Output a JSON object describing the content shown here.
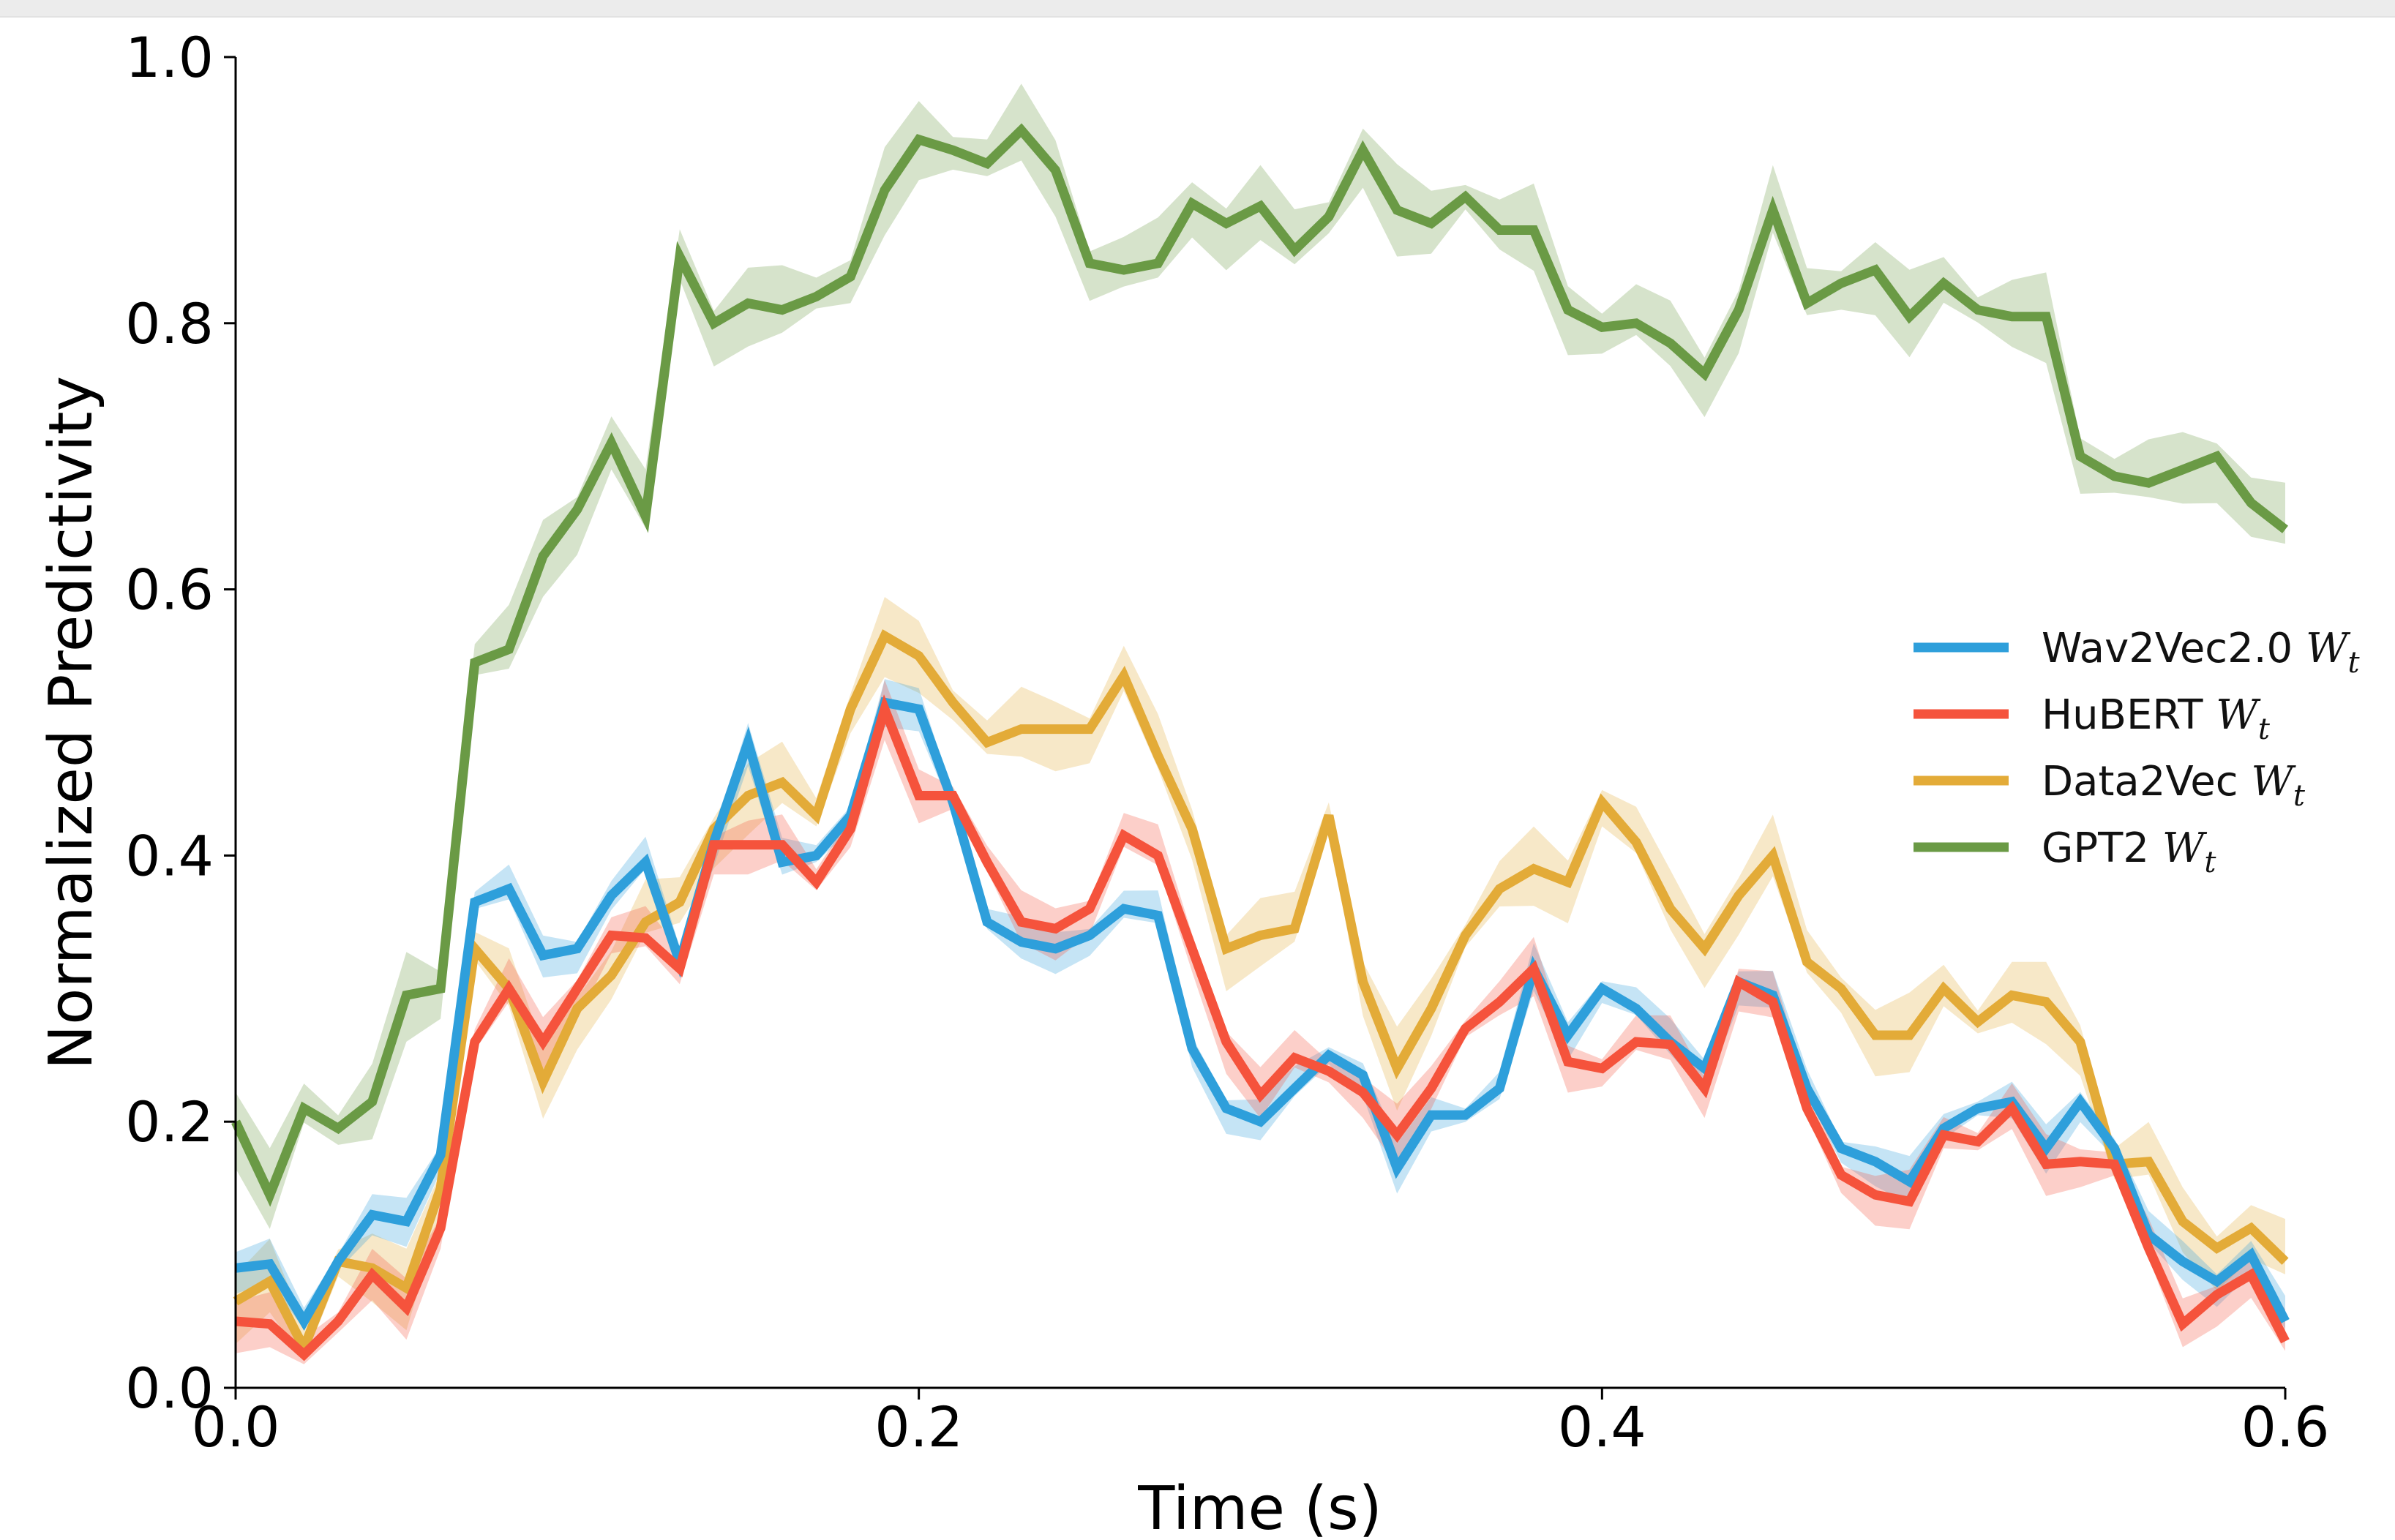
{
  "chart_data": {
    "type": "line",
    "xlabel": "Time (s)",
    "ylabel": "Normalized Predictivity",
    "xlim": [
      0.0,
      0.6
    ],
    "ylim": [
      0.0,
      1.0
    ],
    "xticks": [
      0.0,
      0.2,
      0.4,
      0.6
    ],
    "xtick_labels": [
      "0.0",
      "0.2",
      "0.4",
      "0.6"
    ],
    "yticks": [
      0.0,
      0.2,
      0.4,
      0.6,
      0.8,
      1.0
    ],
    "ytick_labels": [
      "0.0",
      "0.2",
      "0.4",
      "0.6",
      "0.8",
      "1.0"
    ],
    "grid": false,
    "legend_position": "center-right",
    "x": [
      0.0,
      0.01,
      0.02,
      0.03,
      0.04,
      0.05,
      0.06,
      0.07,
      0.08,
      0.09,
      0.1,
      0.11,
      0.12,
      0.13,
      0.14,
      0.15,
      0.16,
      0.17,
      0.18,
      0.19,
      0.2,
      0.21,
      0.22,
      0.23,
      0.24,
      0.25,
      0.26,
      0.27,
      0.28,
      0.29,
      0.3,
      0.31,
      0.32,
      0.33,
      0.34,
      0.35,
      0.36,
      0.37,
      0.38,
      0.39,
      0.4,
      0.41,
      0.42,
      0.43,
      0.44,
      0.45,
      0.46,
      0.47,
      0.48,
      0.49,
      0.5,
      0.51,
      0.52,
      0.53,
      0.54,
      0.55,
      0.56,
      0.57,
      0.58,
      0.59,
      0.6
    ],
    "series": [
      {
        "name": "Wav2Vec2.0",
        "subscript_label": "W",
        "subscript": "t",
        "color": "#2e9fdb",
        "values": [
          0.09,
          0.093,
          0.05,
          0.095,
          0.13,
          0.125,
          0.175,
          0.365,
          0.375,
          0.325,
          0.33,
          0.37,
          0.395,
          0.32,
          0.41,
          0.485,
          0.395,
          0.4,
          0.43,
          0.515,
          0.51,
          0.44,
          0.35,
          0.335,
          0.33,
          0.34,
          0.36,
          0.355,
          0.255,
          0.21,
          0.2,
          0.225,
          0.25,
          0.235,
          0.165,
          0.205,
          0.205,
          0.225,
          0.315,
          0.265,
          0.3,
          0.285,
          0.26,
          0.24,
          0.305,
          0.295,
          0.225,
          0.18,
          0.17,
          0.155,
          0.195,
          0.21,
          0.215,
          0.18,
          0.215,
          0.18,
          0.115,
          0.095,
          0.08,
          0.1,
          0.05
        ],
        "band": 0.012
      },
      {
        "name": "HuBERT",
        "subscript_label": "W",
        "subscript": "t",
        "color": "#f5533c",
        "values": [
          0.05,
          0.048,
          0.025,
          0.05,
          0.085,
          0.06,
          0.12,
          0.26,
          0.3,
          0.26,
          0.3,
          0.34,
          0.338,
          0.315,
          0.408,
          0.408,
          0.408,
          0.38,
          0.42,
          0.51,
          0.445,
          0.445,
          0.395,
          0.35,
          0.345,
          0.36,
          0.415,
          0.4,
          0.33,
          0.26,
          0.22,
          0.248,
          0.238,
          0.222,
          0.19,
          0.225,
          0.27,
          0.29,
          0.315,
          0.245,
          0.24,
          0.26,
          0.258,
          0.225,
          0.305,
          0.29,
          0.21,
          0.16,
          0.145,
          0.14,
          0.19,
          0.185,
          0.21,
          0.168,
          0.17,
          0.168,
          0.105,
          0.048,
          0.07,
          0.085,
          0.035
        ],
        "band": 0.015
      },
      {
        "name": "Data2Vec",
        "subscript_label": "W",
        "subscript": "t",
        "color": "#e3ab38",
        "values": [
          0.065,
          0.08,
          0.03,
          0.095,
          0.09,
          0.075,
          0.15,
          0.33,
          0.3,
          0.23,
          0.285,
          0.31,
          0.35,
          0.365,
          0.42,
          0.445,
          0.455,
          0.43,
          0.51,
          0.565,
          0.55,
          0.515,
          0.485,
          0.495,
          0.495,
          0.495,
          0.535,
          0.475,
          0.42,
          0.33,
          0.34,
          0.345,
          0.43,
          0.305,
          0.24,
          0.285,
          0.34,
          0.375,
          0.39,
          0.38,
          0.44,
          0.41,
          0.36,
          0.33,
          0.37,
          0.4,
          0.32,
          0.3,
          0.265,
          0.265,
          0.3,
          0.275,
          0.295,
          0.29,
          0.26,
          0.168,
          0.17,
          0.125,
          0.105,
          0.12,
          0.095
        ],
        "band": 0.02
      },
      {
        "name": "GPT2",
        "subscript_label": "W",
        "subscript": "t",
        "color": "#6a9a45",
        "values": [
          0.2,
          0.145,
          0.21,
          0.195,
          0.215,
          0.295,
          0.3,
          0.545,
          0.555,
          0.625,
          0.66,
          0.71,
          0.655,
          0.85,
          0.8,
          0.815,
          0.81,
          0.82,
          0.835,
          0.9,
          0.938,
          0.93,
          0.92,
          0.945,
          0.915,
          0.845,
          0.84,
          0.845,
          0.89,
          0.875,
          0.888,
          0.855,
          0.88,
          0.93,
          0.885,
          0.875,
          0.895,
          0.87,
          0.87,
          0.81,
          0.797,
          0.8,
          0.785,
          0.762,
          0.81,
          0.885,
          0.815,
          0.83,
          0.84,
          0.805,
          0.83,
          0.81,
          0.805,
          0.805,
          0.7,
          0.685,
          0.68,
          0.69,
          0.7,
          0.665,
          0.645
        ],
        "band": 0.022
      }
    ]
  }
}
